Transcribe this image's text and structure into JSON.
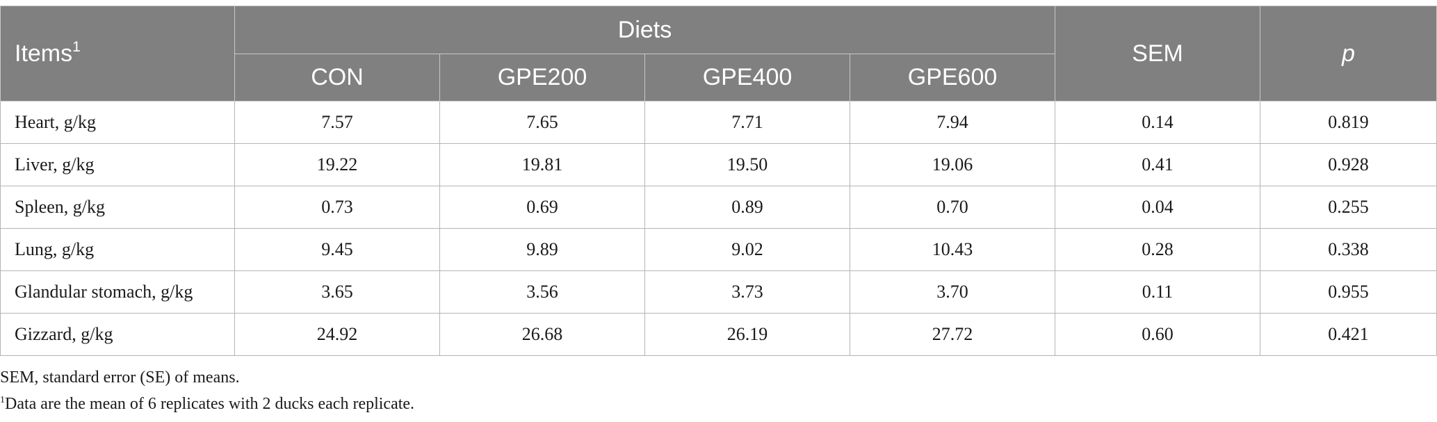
{
  "table": {
    "header": {
      "items_label": "Items",
      "items_sup": "1",
      "diets_label": "Diets",
      "diet_columns": [
        "CON",
        "GPE200",
        "GPE400",
        "GPE600"
      ],
      "sem_label": "SEM",
      "p_label": "p"
    },
    "rows": [
      {
        "label": "Heart, g/kg",
        "values": [
          "7.57",
          "7.65",
          "7.71",
          "7.94"
        ],
        "sem": "0.14",
        "p": "0.819"
      },
      {
        "label": "Liver, g/kg",
        "values": [
          "19.22",
          "19.81",
          "19.50",
          "19.06"
        ],
        "sem": "0.41",
        "p": "0.928"
      },
      {
        "label": "Spleen, g/kg",
        "values": [
          "0.73",
          "0.69",
          "0.89",
          "0.70"
        ],
        "sem": "0.04",
        "p": "0.255"
      },
      {
        "label": "Lung, g/kg",
        "values": [
          "9.45",
          "9.89",
          "9.02",
          "10.43"
        ],
        "sem": "0.28",
        "p": "0.338"
      },
      {
        "label": "Glandular stomach, g/kg",
        "values": [
          "3.65",
          "3.56",
          "3.73",
          "3.70"
        ],
        "sem": "0.11",
        "p": "0.955"
      },
      {
        "label": "Gizzard, g/kg",
        "values": [
          "24.92",
          "26.68",
          "26.19",
          "27.72"
        ],
        "sem": "0.60",
        "p": "0.421"
      }
    ]
  },
  "footnotes": {
    "sem_note": "SEM, standard error (SE) of means.",
    "note1_marker": "1",
    "note1_text": "Data are the mean of 6 replicates with 2 ducks each replicate."
  },
  "colors": {
    "header_bg": "#808080",
    "header_text": "#ffffff",
    "border": "#b4b4b4"
  }
}
